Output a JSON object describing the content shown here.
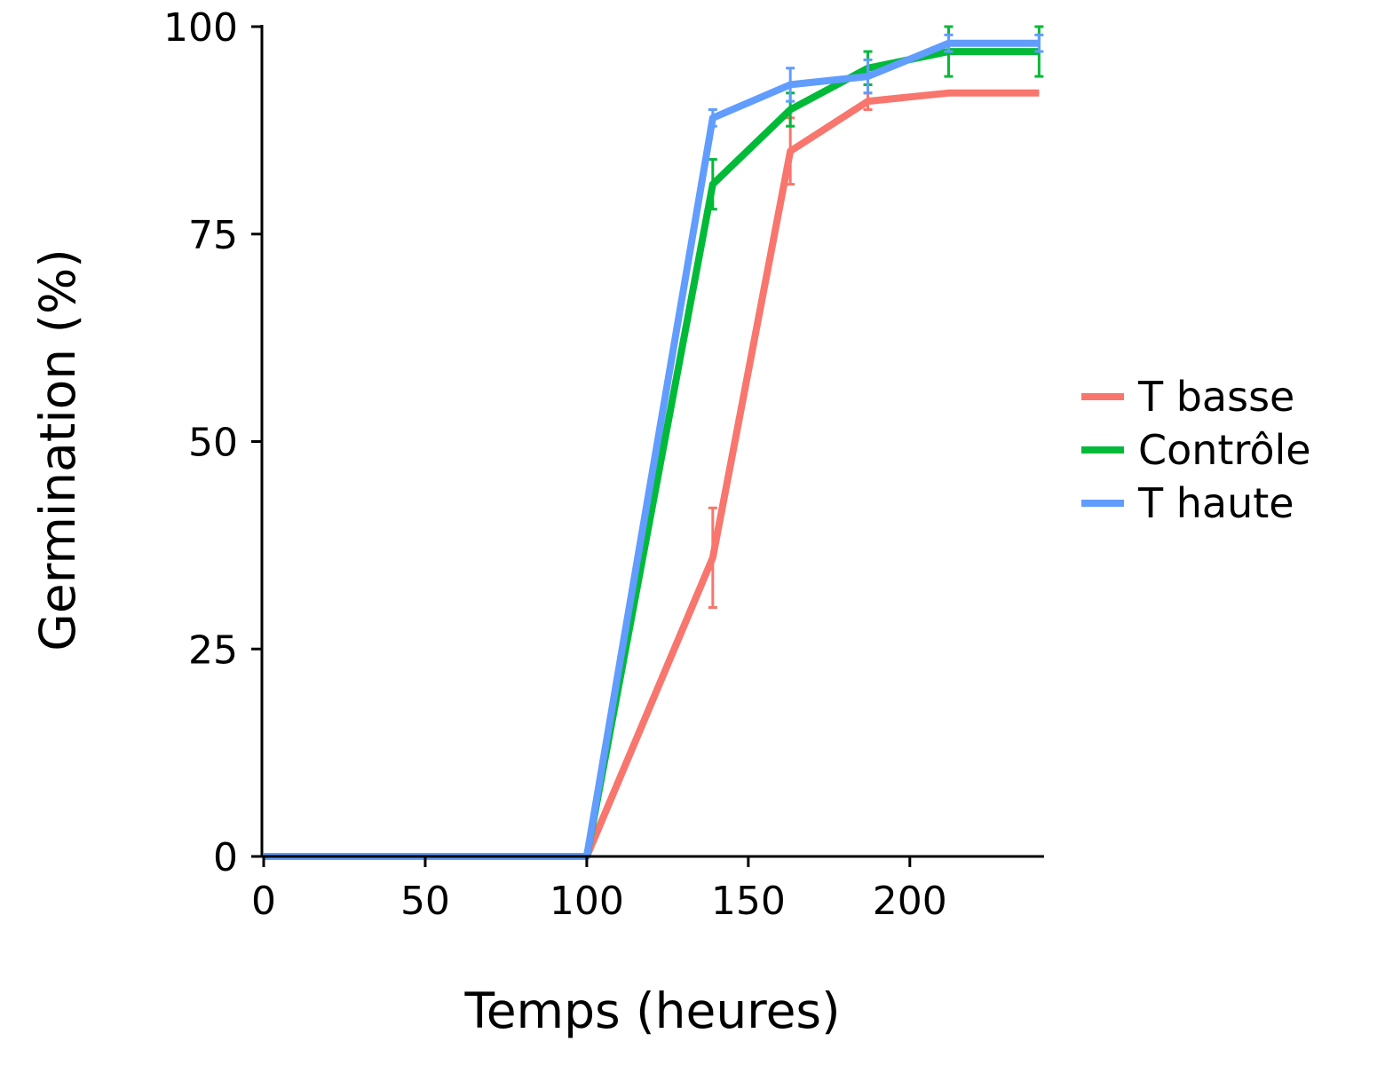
{
  "chart_data": {
    "type": "line",
    "title": "",
    "xlabel": "Temps (heures)",
    "ylabel": "Germination (%)",
    "xlim": [
      0,
      241
    ],
    "ylim": [
      0,
      100
    ],
    "xticks": [
      0,
      50,
      100,
      150,
      200
    ],
    "yticks": [
      0,
      25,
      50,
      75,
      100
    ],
    "grid": false,
    "legend_position": "right",
    "error_bars": true,
    "series": [
      {
        "name": "T basse",
        "color": "#F8766D",
        "x": [
          0,
          100,
          139,
          163,
          187,
          212,
          240
        ],
        "y": [
          0,
          0,
          36,
          85,
          91,
          92,
          92
        ],
        "err": [
          0,
          0,
          6,
          4,
          1,
          0,
          0
        ]
      },
      {
        "name": "Contrôle",
        "color": "#00BA38",
        "x": [
          0,
          100,
          139,
          163,
          187,
          212,
          240
        ],
        "y": [
          0,
          0,
          81,
          90,
          95,
          97,
          97
        ],
        "err": [
          0,
          0,
          3,
          2,
          2,
          3,
          3
        ]
      },
      {
        "name": "T haute",
        "color": "#619CFF",
        "x": [
          0,
          100,
          139,
          163,
          187,
          212,
          240
        ],
        "y": [
          0,
          0,
          89,
          93,
          94,
          98,
          98
        ],
        "err": [
          0,
          0,
          1,
          2,
          2,
          1,
          1
        ]
      }
    ]
  }
}
